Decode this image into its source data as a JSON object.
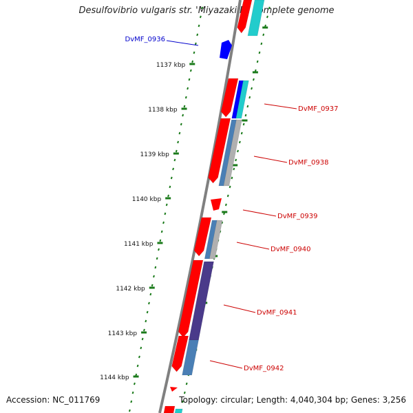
{
  "header": {
    "title": "Desulfovibrio vulgaris str. 'Miyazaki F', complete genome"
  },
  "footer": {
    "accession": "Accession: NC_011769",
    "summary": "Topology: circular; Length: 4,040,304 bp; Genes: 3,256"
  },
  "colors": {
    "backbone": "#808080",
    "tick": "#1a7a1a",
    "forward_label": "#0000cc",
    "reverse_label": "#cc0000",
    "gene_forward": "#0000ff",
    "gene_reverse": "#ff0000",
    "cds_cyan": "#22cccc",
    "cds_steel": "#4a7fb5",
    "cds_gray": "#b0b0b0",
    "cds_purple": "#4a3a8a"
  },
  "scale": {
    "tick_labels": [
      "1137 kbp",
      "1138 kbp",
      "1139 kbp",
      "1140 kbp",
      "1141 kbp",
      "1142 kbp",
      "1143 kbp",
      "1144 kbp"
    ]
  },
  "genes": [
    {
      "label": "DvMF_0936",
      "strand": "forward"
    },
    {
      "label": "DvMF_0937",
      "strand": "reverse"
    },
    {
      "label": "DvMF_0938",
      "strand": "reverse"
    },
    {
      "label": "DvMF_0939",
      "strand": "reverse"
    },
    {
      "label": "DvMF_0940",
      "strand": "reverse"
    },
    {
      "label": "DvMF_0941",
      "strand": "reverse"
    },
    {
      "label": "DvMF_0942",
      "strand": "reverse"
    }
  ]
}
